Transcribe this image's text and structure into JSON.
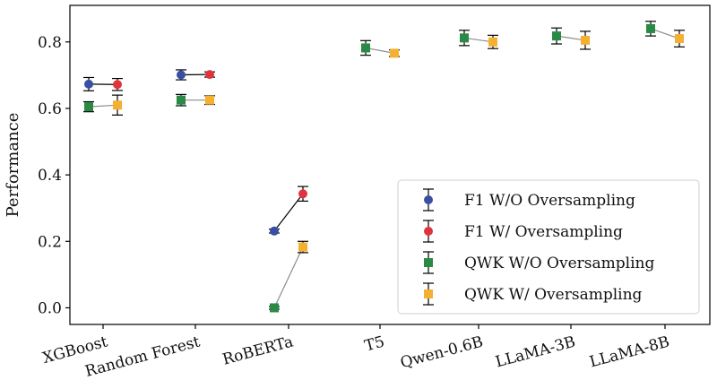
{
  "chart_data": {
    "type": "scatter",
    "title": "",
    "xlabel": "",
    "ylabel": "Performance",
    "ylim": [
      -0.05,
      0.91
    ],
    "yticks": [
      "0.0",
      "0.2",
      "0.4",
      "0.6",
      "0.8"
    ],
    "categories": [
      "XGBoost",
      "Random Forest",
      "RoBERTa",
      "T5",
      "Qwen-0.6B",
      "LLaMA-3B",
      "LLaMA-8B"
    ],
    "legend_position": "lower-right",
    "grid": false,
    "series": [
      {
        "name": "F1 W/O Oversampling",
        "metric": "F1",
        "oversampling": false,
        "color": "#3a4fa3",
        "marker": "circle",
        "values": [
          0.673,
          0.701,
          0.231,
          null,
          null,
          null,
          null
        ],
        "errors": [
          0.02,
          0.015,
          0.006,
          null,
          null,
          null,
          null
        ]
      },
      {
        "name": "F1 W/ Oversampling",
        "metric": "F1",
        "oversampling": true,
        "color": "#e0333b",
        "marker": "circle",
        "values": [
          0.672,
          0.702,
          0.343,
          null,
          null,
          null,
          null
        ],
        "errors": [
          0.018,
          0.008,
          0.022,
          null,
          null,
          null,
          null
        ]
      },
      {
        "name": "QWK W/O Oversampling",
        "metric": "QWK",
        "oversampling": false,
        "color": "#2a8a45",
        "marker": "square",
        "values": [
          0.605,
          0.625,
          0.0,
          0.782,
          0.812,
          0.818,
          0.84
        ],
        "errors": [
          0.015,
          0.017,
          0.004,
          0.022,
          0.023,
          0.024,
          0.022
        ]
      },
      {
        "name": "QWK W/ Oversampling",
        "metric": "QWK",
        "oversampling": true,
        "color": "#f4b02e",
        "marker": "square",
        "values": [
          0.61,
          0.625,
          0.183,
          0.766,
          0.8,
          0.805,
          0.81
        ],
        "errors": [
          0.03,
          0.013,
          0.017,
          0.01,
          0.02,
          0.027,
          0.025
        ]
      }
    ],
    "connectors": [
      {
        "metric": "F1",
        "color": "#000000"
      },
      {
        "metric": "QWK",
        "color": "#8c8c8c"
      }
    ]
  }
}
